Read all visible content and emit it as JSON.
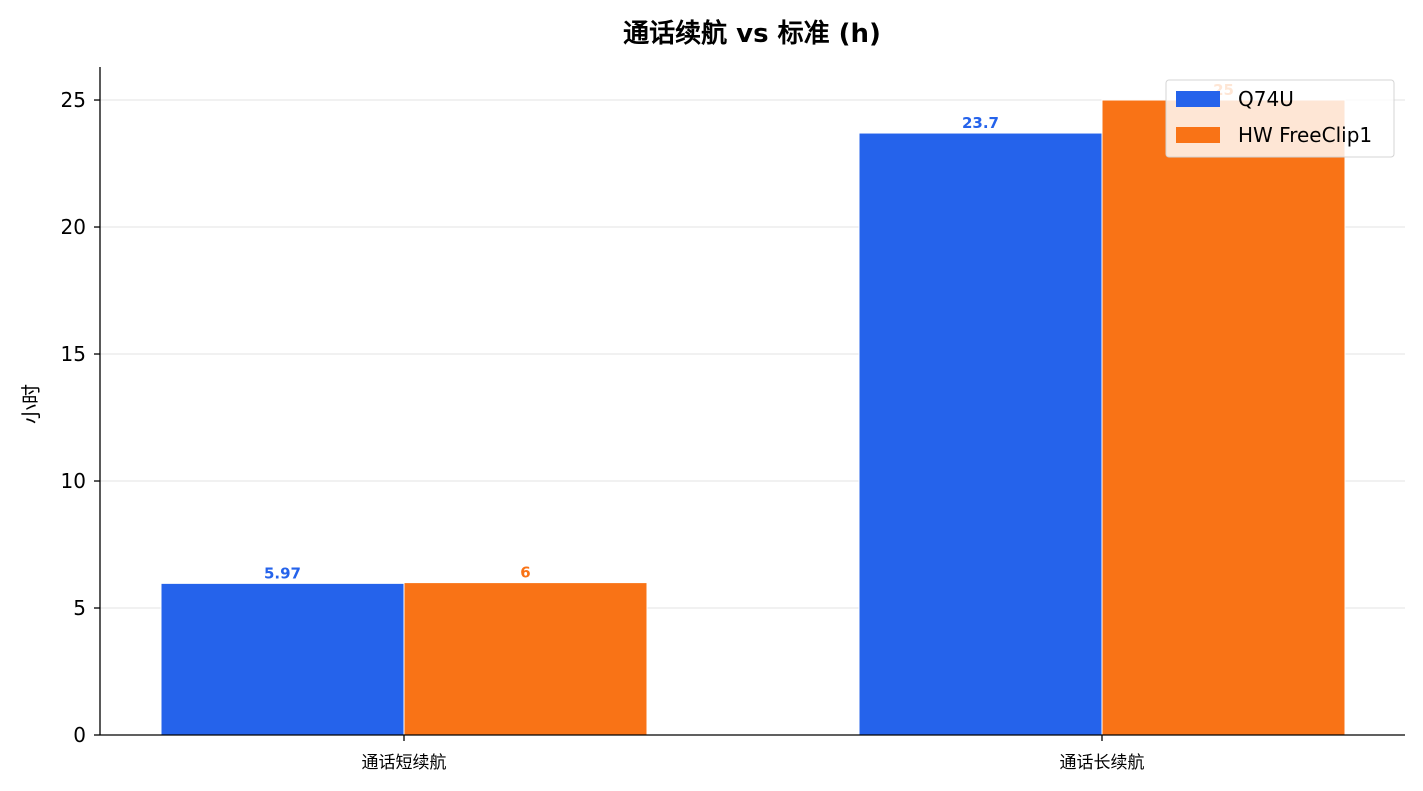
{
  "chart_data": {
    "type": "bar",
    "title": "通话续航 vs 标准 (h)",
    "xlabel": "",
    "ylabel": "小时",
    "categories": [
      "通话短续航",
      "通话长续航"
    ],
    "series": [
      {
        "name": "Q74U",
        "values": [
          5.97,
          23.7
        ],
        "value_labels": [
          "5.97",
          "23.7"
        ],
        "color": "#2563eb"
      },
      {
        "name": "HW FreeClip1",
        "values": [
          6,
          25
        ],
        "value_labels": [
          "6",
          "25"
        ],
        "color": "#f97316"
      }
    ],
    "ylim": [
      0,
      26.3
    ],
    "yticks": [
      0,
      5,
      10,
      15,
      20,
      25
    ],
    "grid": true,
    "legend_position": "top-right"
  }
}
